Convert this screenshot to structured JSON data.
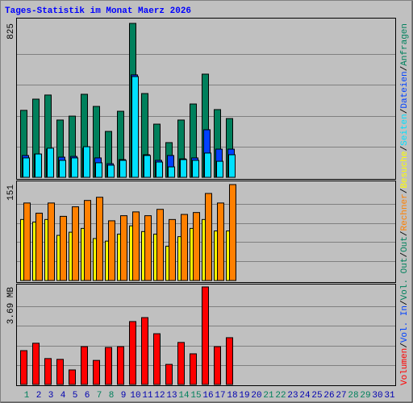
{
  "chart_data": {
    "type": "bar",
    "title": "Tages-Statistik im Monat Maerz 2026",
    "categories": [
      "1",
      "2",
      "3",
      "4",
      "5",
      "6",
      "7",
      "8",
      "9",
      "10",
      "11",
      "12",
      "13",
      "14",
      "15",
      "16",
      "17",
      "18",
      "19",
      "20",
      "21",
      "22",
      "23",
      "24",
      "25",
      "26",
      "27",
      "28",
      "29",
      "30",
      "31"
    ],
    "category_colors": [
      "#00805c",
      "#0000b0",
      "#0000b0",
      "#0000b0",
      "#0000b0",
      "#0000b0",
      "#00805c",
      "#00805c",
      "#0000b0",
      "#0000b0",
      "#0000b0",
      "#0000b0",
      "#0000b0",
      "#00805c",
      "#00805c",
      "#0000b0",
      "#0000b0",
      "#0000b0",
      "#0000b0",
      "#0000b0",
      "#00805c",
      "#00805c",
      "#0000b0",
      "#0000b0",
      "#0000b0",
      "#0000b0",
      "#0000b0",
      "#00805c",
      "#00805c",
      "#0000b0",
      "#0000b0"
    ],
    "panels": [
      {
        "ylim": [
          0,
          825
        ],
        "yticks": [
          825
        ],
        "series": [
          {
            "color": "#00805c",
            "values": [
              359,
              419,
              441,
              307,
              328,
              445,
              380,
              246,
              354,
              825,
              449,
              285,
              186,
              307,
              393,
              553,
              363,
              315,
              null,
              null,
              null,
              null,
              null,
              null,
              null,
              null,
              null,
              null,
              null,
              null,
              null
            ]
          },
          {
            "color": "#0040ff",
            "values": [
              117,
              125,
              151,
              108,
              112,
              156,
              104,
              73,
              95,
              549,
              121,
              91,
              117,
              99,
              104,
              255,
              151,
              151,
              null,
              null,
              null,
              null,
              null,
              null,
              null,
              null,
              null,
              null,
              null,
              null,
              null
            ]
          },
          {
            "color": "#00e0ff",
            "values": [
              104,
              125,
              156,
              91,
              104,
              164,
              78,
              65,
              91,
              540,
              117,
              82,
              56,
              95,
              91,
              130,
              86,
              121,
              null,
              null,
              null,
              null,
              null,
              null,
              null,
              null,
              null,
              null,
              null,
              null,
              null
            ]
          }
        ]
      },
      {
        "ylim": [
          0,
          151
        ],
        "yticks": [
          151
        ],
        "series": [
          {
            "color": "#ffff00",
            "values": [
              96,
              92,
              96,
              71,
              76,
              82,
              66,
              62,
              73,
              86,
              77,
              73,
              54,
              69,
              82,
              96,
              78,
              78,
              null,
              null,
              null,
              null,
              null,
              null,
              null,
              null,
              null,
              null,
              null,
              null,
              null
            ]
          },
          {
            "color": "#ff8000",
            "values": [
              122,
              106,
              122,
              101,
              116,
              126,
              131,
              94,
              102,
              108,
              102,
              112,
              96,
              104,
              107,
              137,
              122,
              151,
              null,
              null,
              null,
              null,
              null,
              null,
              null,
              null,
              null,
              null,
              null,
              null,
              null
            ]
          }
        ]
      },
      {
        "ylim": [
          0,
          3.69
        ],
        "yticks": [
          {
            "value": 3.69,
            "label": "3.69 MB"
          }
        ],
        "series": [
          {
            "color": "#ff0000",
            "values": [
              1.28,
              1.56,
              0.98,
              0.95,
              0.55,
              1.43,
              0.91,
              1.4,
              1.43,
              2.38,
              2.53,
              1.92,
              0.76,
              1.59,
              1.16,
              3.69,
              1.43,
              1.77,
              null,
              null,
              null,
              null,
              null,
              null,
              null,
              null,
              null,
              null,
              null,
              null,
              null
            ]
          }
        ]
      }
    ],
    "legend": [
      {
        "name": "Volumen",
        "color": "#ff0000"
      },
      {
        "name": "Vol. In",
        "color": "#0040ff"
      },
      {
        "name": "Vol. Out",
        "color": "#00805c"
      },
      {
        "name": "Out",
        "color": "#00805c"
      },
      {
        "name": "Rechner",
        "color": "#ff8000"
      },
      {
        "name": "Besuche",
        "color": "#ffff00"
      },
      {
        "name": "Seiten",
        "color": "#00e0ff"
      },
      {
        "name": "Dateien",
        "color": "#0040ff"
      },
      {
        "name": "Anfragen",
        "color": "#00805c"
      }
    ]
  }
}
